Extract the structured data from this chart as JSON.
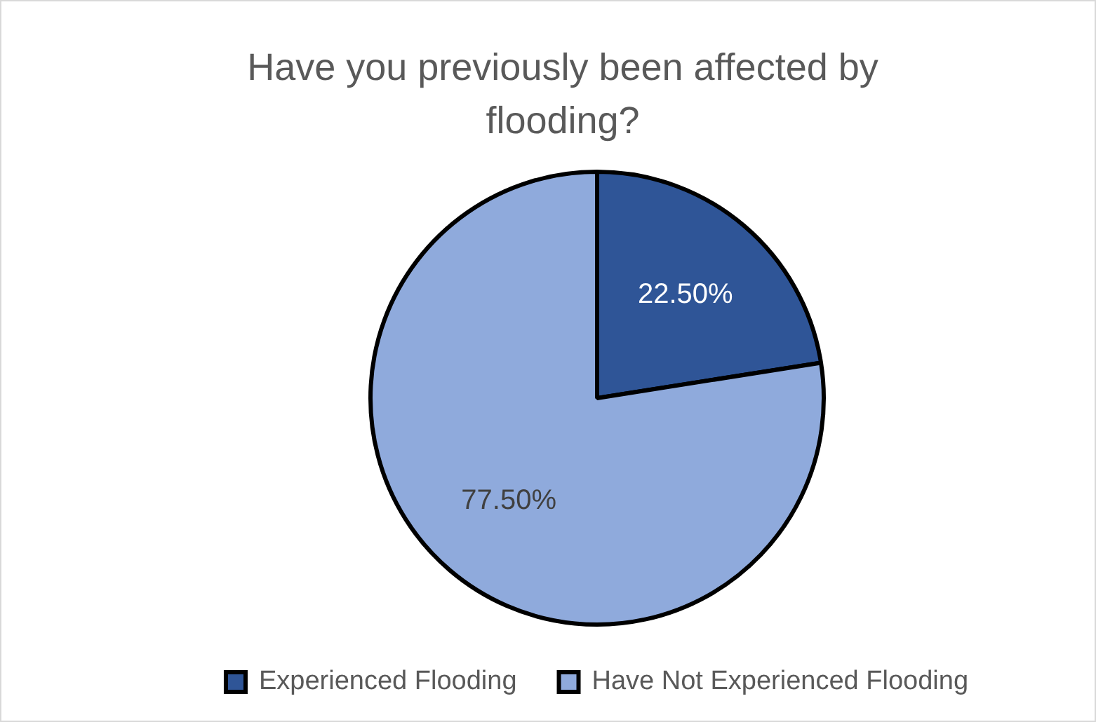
{
  "chart_data": {
    "type": "pie",
    "title": "Have you previously been affected by flooding?",
    "categories": [
      "Experienced Flooding",
      "Have Not Experienced Flooding"
    ],
    "values": [
      22.5,
      77.5
    ],
    "colors": [
      "#2f5597",
      "#8faadc"
    ],
    "value_labels": [
      "22.50%",
      "77.50%"
    ],
    "legend": "bottom"
  }
}
